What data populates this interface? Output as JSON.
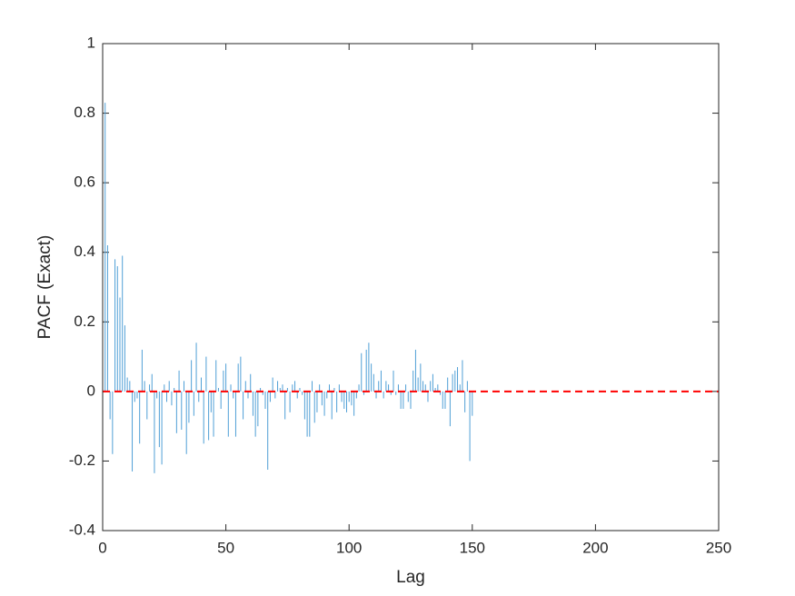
{
  "chart_data": {
    "type": "stem",
    "x_label": "Lag",
    "y_label": "PACF (Exact)",
    "x": [
      0,
      1,
      2,
      3,
      4,
      5,
      6,
      7,
      8,
      9,
      10,
      11,
      12,
      13,
      14,
      15,
      16,
      17,
      18,
      19,
      20,
      21,
      22,
      23,
      24,
      25,
      26,
      27,
      28,
      29,
      30,
      31,
      32,
      33,
      34,
      35,
      36,
      37,
      38,
      39,
      40,
      41,
      42,
      43,
      44,
      45,
      46,
      47,
      48,
      49,
      50,
      51,
      52,
      53,
      54,
      55,
      56,
      57,
      58,
      59,
      60,
      61,
      62,
      63,
      64,
      65,
      66,
      67,
      68,
      69,
      70,
      71,
      72,
      73,
      74,
      75,
      76,
      77,
      78,
      79,
      80,
      81,
      82,
      83,
      84,
      85,
      86,
      87,
      88,
      89,
      90,
      91,
      92,
      93,
      94,
      95,
      96,
      97,
      98,
      99,
      100,
      101,
      102,
      103,
      104,
      105,
      106,
      107,
      108,
      109,
      110,
      111,
      112,
      113,
      114,
      115,
      116,
      117,
      118,
      119,
      120,
      121,
      122,
      123,
      124,
      125,
      126,
      127,
      128,
      129,
      130,
      131,
      132,
      133,
      134,
      135,
      136,
      137,
      138,
      139,
      140,
      141,
      142,
      143,
      144,
      145,
      146,
      147,
      148,
      149,
      150
    ],
    "values": [
      1,
      0.83,
      0.42,
      -0.08,
      -0.18,
      0.38,
      0.36,
      0.27,
      0.39,
      0.19,
      0.04,
      0.03,
      -0.23,
      -0.03,
      -0.02,
      -0.15,
      0.12,
      0.03,
      -0.08,
      0.02,
      0.05,
      -0.235,
      -0.02,
      -0.16,
      -0.21,
      0.02,
      -0.03,
      0.03,
      -0.04,
      0.01,
      -0.12,
      0.06,
      -0.11,
      0.03,
      -0.18,
      -0.09,
      0.09,
      -0.07,
      0.14,
      -0.03,
      0.04,
      -0.15,
      0.1,
      -0.14,
      -0.06,
      -0.13,
      0.09,
      0.01,
      -0.05,
      0.06,
      0.08,
      -0.13,
      0.02,
      -0.02,
      -0.13,
      0.08,
      0.1,
      -0.08,
      0.03,
      -0.02,
      0.05,
      -0.07,
      -0.13,
      -0.1,
      0.01,
      -0.01,
      -0.05,
      -0.225,
      -0.03,
      0.04,
      -0.02,
      0.03,
      0.01,
      0.02,
      -0.08,
      0.01,
      -0.06,
      0.02,
      0.03,
      -0.02,
      0.01,
      -0.01,
      -0.08,
      -0.13,
      -0.13,
      0.03,
      -0.09,
      -0.06,
      0.02,
      -0.04,
      -0.07,
      -0.02,
      0.02,
      -0.08,
      0.01,
      -0.06,
      0.02,
      -0.03,
      -0.05,
      -0.06,
      -0.03,
      -0.04,
      -0.07,
      -0.02,
      0.02,
      0.11,
      -0.01,
      0.12,
      0.14,
      0.08,
      0.05,
      -0.02,
      0.03,
      0.06,
      -0.02,
      0.03,
      0.02,
      -0.01,
      0.06,
      -0.01,
      0.02,
      -0.05,
      -0.05,
      0.02,
      -0.03,
      -0.05,
      0.06,
      0.12,
      0.04,
      0.08,
      0.03,
      0.02,
      -0.03,
      0.03,
      0.05,
      0.01,
      0.02,
      -0.01,
      -0.05,
      -0.05,
      0.04,
      -0.1,
      0.05,
      0.06,
      0.07,
      0.02,
      0.09,
      -0.06,
      0.03,
      -0.2,
      -0.07
    ],
    "color": "#4f9fd6",
    "reference_line": {
      "value": 0,
      "color": "#ff0000",
      "style": "dashed"
    },
    "xlim": [
      0,
      250
    ],
    "xticks": [
      0,
      50,
      100,
      150,
      200,
      250
    ],
    "ylim": [
      -0.4,
      1
    ],
    "yticks": [
      -0.4,
      -0.2,
      0,
      0.2,
      0.4,
      0.6,
      0.8,
      1
    ]
  }
}
